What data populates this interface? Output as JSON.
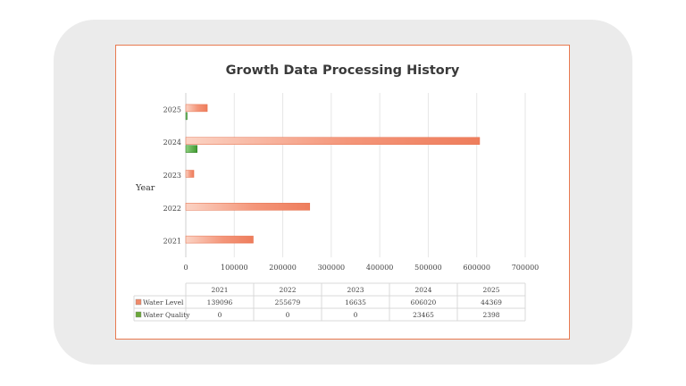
{
  "chart_data": {
    "type": "bar",
    "orientation": "horizontal",
    "title": "Growth Data Processing History",
    "ylabel": "Year",
    "categories": [
      "2021",
      "2022",
      "2023",
      "2024",
      "2025"
    ],
    "x_ticks": [
      "0",
      "100000",
      "200000",
      "300000",
      "400000",
      "500000",
      "600000",
      "700000"
    ],
    "xlim": [
      0,
      700000
    ],
    "grid": true,
    "legend": "data-table",
    "series": [
      {
        "name": "Water Level",
        "color": "#f08a6a",
        "values": [
          139096,
          255679,
          16635,
          606020,
          44369
        ],
        "labels": [
          "139096",
          "255679",
          "16635",
          "606020",
          "44369"
        ]
      },
      {
        "name": "Water Quality",
        "color": "#4fae3e",
        "values": [
          0,
          0,
          0,
          23465,
          2398
        ],
        "labels": [
          "0",
          "0",
          "0",
          "23465",
          "2398"
        ]
      }
    ]
  }
}
